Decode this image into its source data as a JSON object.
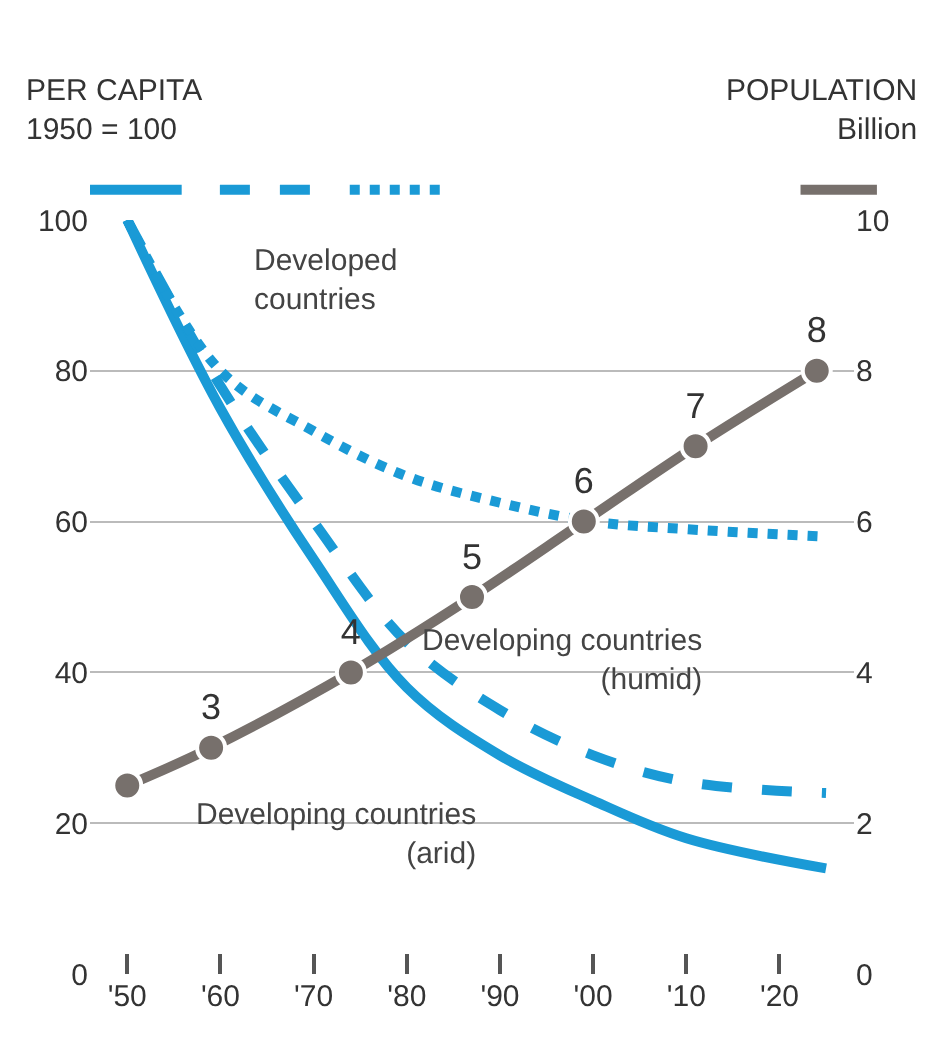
{
  "chart_data": {
    "type": "line",
    "ylabel": "PER CAPITA\n1950 = 100",
    "y2label": "POPULATION\nBillion",
    "x": [
      1950,
      1960,
      1970,
      1980,
      1990,
      2000,
      2010,
      2025
    ],
    "xlim": [
      1946,
      2028
    ],
    "xticks": [
      {
        "value": 1950,
        "label": "'50"
      },
      {
        "value": 1960,
        "label": "'60"
      },
      {
        "value": 1970,
        "label": "'70"
      },
      {
        "value": 1980,
        "label": "'80"
      },
      {
        "value": 1990,
        "label": "'90"
      },
      {
        "value": 2000,
        "label": "'00"
      },
      {
        "value": 2010,
        "label": "'10"
      },
      {
        "value": 2020,
        "label": "'20"
      }
    ],
    "ylim": [
      0,
      100
    ],
    "yticks": [
      0,
      20,
      40,
      60,
      80,
      100
    ],
    "y2lim": [
      0,
      10
    ],
    "y2ticks": [
      0,
      2,
      4,
      6,
      8,
      10
    ],
    "grid": "y",
    "legend": "top",
    "series": [
      {
        "name": "Developing countries (arid)",
        "color": "#1a9ad6",
        "line_style": "solid",
        "values": [
          100,
          75,
          55,
          38,
          29,
          23,
          18,
          14
        ]
      },
      {
        "name": "Developing countries (humid)",
        "color": "#1a9ad6",
        "line_style": "dashed",
        "values": [
          100,
          78,
          60,
          44,
          35,
          29,
          25.5,
          24
        ]
      },
      {
        "name": "Developed countries",
        "color": "#1a9ad6",
        "line_style": "dotted",
        "values": [
          100,
          80,
          72,
          66,
          62.5,
          60,
          59,
          58
        ]
      },
      {
        "type": "line",
        "axis": "y2",
        "color": "#77706c",
        "line_style": "solid",
        "marker": "circle",
        "x": [
          1950,
          1959,
          1974,
          1987,
          1999,
          2011,
          2024
        ],
        "values": [
          2.5,
          3,
          4,
          5,
          6,
          7,
          8
        ],
        "value_labels": [
          null,
          "3",
          "4",
          "5",
          "6",
          "7",
          "8"
        ]
      }
    ]
  }
}
